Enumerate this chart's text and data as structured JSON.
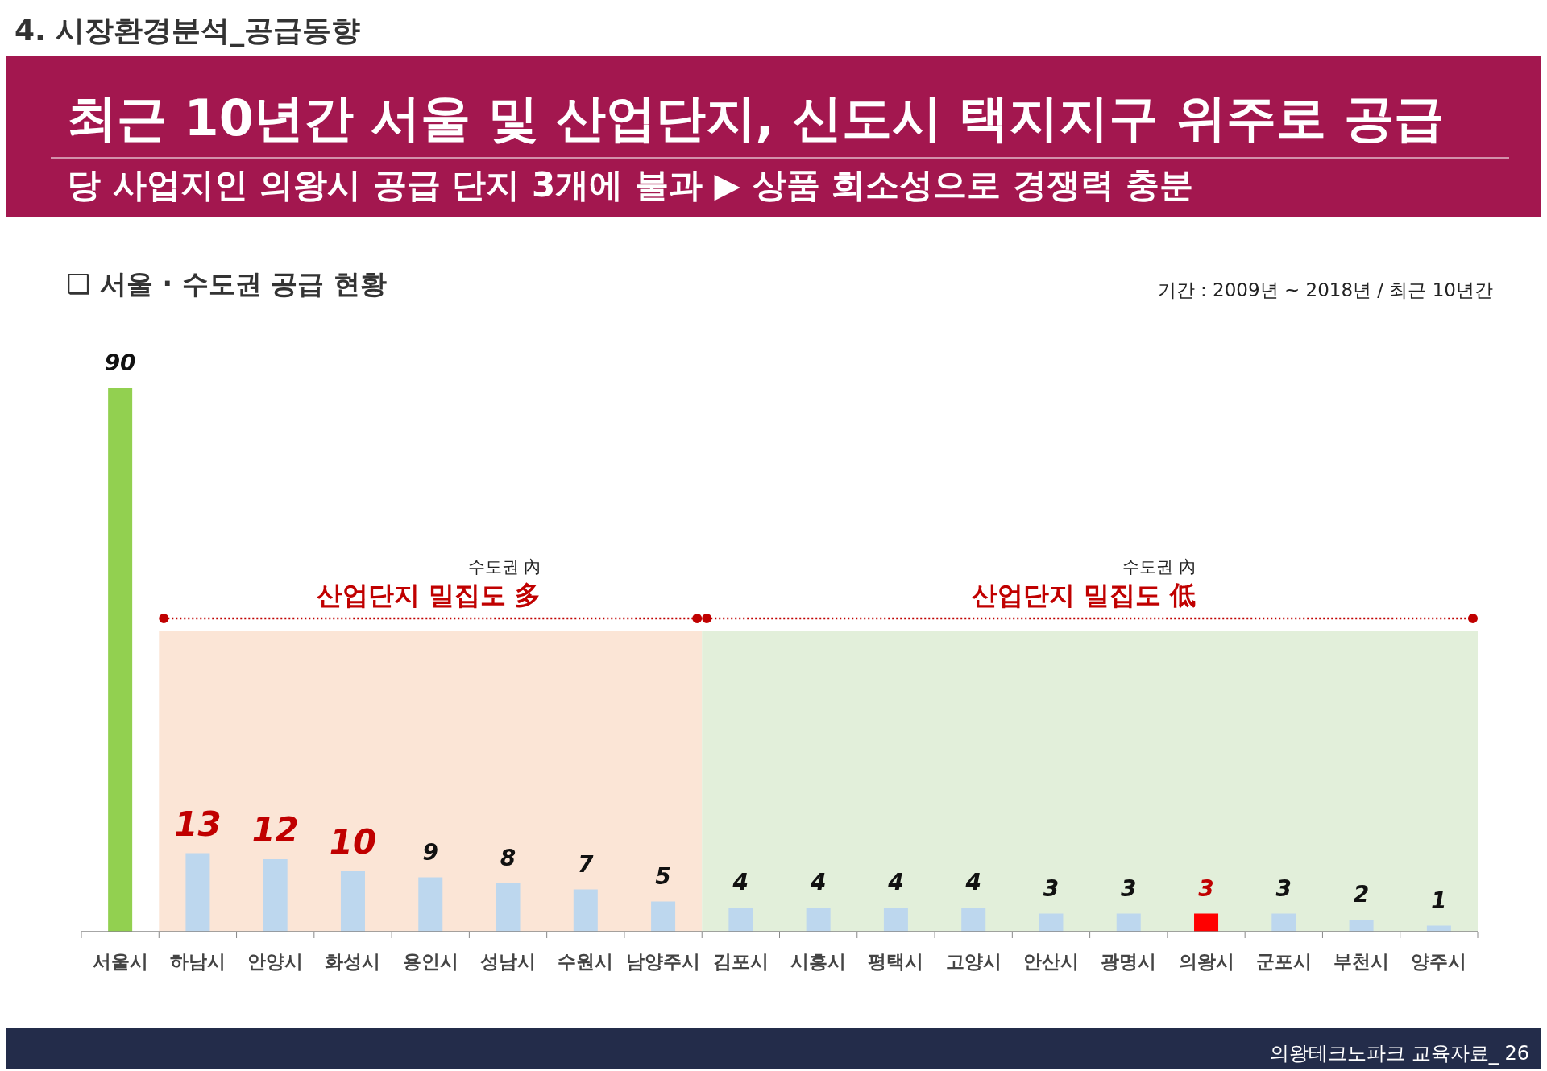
{
  "chart_data": {
    "type": "bar",
    "title": "❑ 서울 · 수도권 공급 현황",
    "subtitle": "기간 : 2009년 ~ 2018년 / 최근 10년간",
    "categories": [
      "서울시",
      "하남시",
      "안양시",
      "화성시",
      "용인시",
      "성남시",
      "수원시",
      "남양주시",
      "김포시",
      "시흥시",
      "평택시",
      "고양시",
      "안산시",
      "광명시",
      "의왕시",
      "군포시",
      "부천시",
      "양주시"
    ],
    "values": [
      90,
      13,
      12,
      10,
      9,
      8,
      7,
      5,
      4,
      4,
      4,
      4,
      3,
      3,
      3,
      3,
      2,
      1
    ],
    "colors": [
      "#92d050",
      "#bdd7ee",
      "#bdd7ee",
      "#bdd7ee",
      "#bdd7ee",
      "#bdd7ee",
      "#bdd7ee",
      "#bdd7ee",
      "#bdd7ee",
      "#bdd7ee",
      "#bdd7ee",
      "#bdd7ee",
      "#bdd7ee",
      "#bdd7ee",
      "#ff0000",
      "#bdd7ee",
      "#bdd7ee",
      "#bdd7ee"
    ],
    "data_labels": true,
    "tick_labels": "x",
    "bands": [
      {
        "axis": "x",
        "from": "하남시",
        "to": "남양주시",
        "label": "산업단지 밀집도 多",
        "color": "#fbe5d6"
      },
      {
        "axis": "x",
        "from": "김포시",
        "to": "양주시",
        "label": "산업단지 밀집도 低",
        "color": "#e2efda"
      }
    ],
    "annotations": [
      "4. 시장환경분석_공급동향",
      "최근 10년간 서울 및 산업단지, 신도시 택지지구 위주로 공급",
      "당 사업지인 의왕시 공급 단지  3개에 불과 ▶  상품 희소성으로 경쟁력 충분",
      "수도권 內",
      "수도권 內",
      "의왕테크노파크 교육자료_  26"
    ]
  }
}
